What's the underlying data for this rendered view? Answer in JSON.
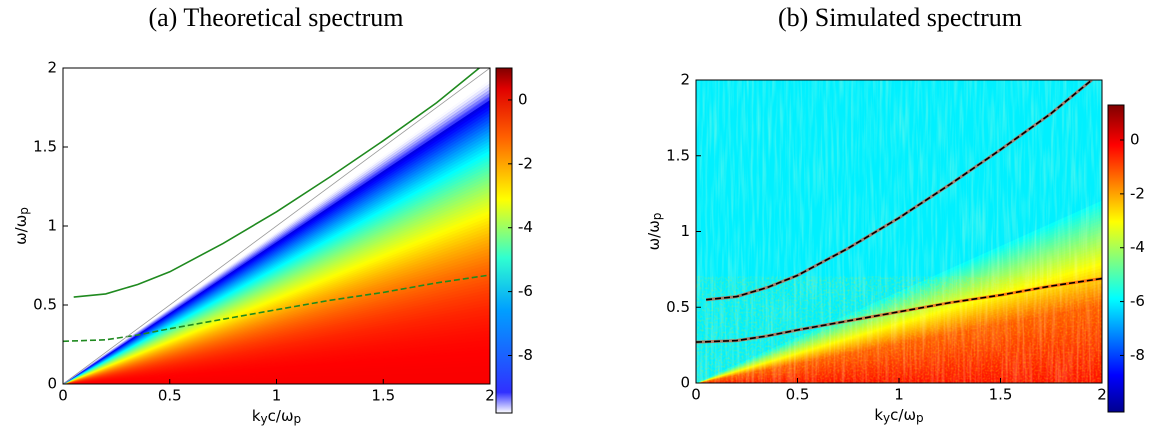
{
  "chart_data": [
    {
      "type": "heatmap",
      "title": "(a) Theoretical spectrum",
      "xlabel": [
        "k",
        "y",
        "c/ω",
        "p"
      ],
      "ylabel": [
        "ω/ω",
        "p"
      ],
      "xlim": [
        0,
        2
      ],
      "ylim": [
        0,
        2
      ],
      "xticks": [
        0,
        0.5,
        1,
        1.5,
        2
      ],
      "yticks": [
        0,
        0.5,
        1,
        1.5,
        2
      ],
      "clim": [
        -9.8,
        1
      ],
      "cticks": [
        -8,
        -6,
        -4,
        -2,
        0
      ],
      "colormap": "jet-white",
      "series": [
        {
          "color": "#1f8a1f",
          "dash": false,
          "x": [
            0.05,
            0.2,
            0.35,
            0.5,
            0.75,
            1,
            1.25,
            1.5,
            1.75,
            1.95
          ],
          "values": [
            0.55,
            0.57,
            0.63,
            0.71,
            0.89,
            1.09,
            1.31,
            1.54,
            1.78,
            2
          ]
        },
        {
          "color": "#1f8a1f",
          "dash": true,
          "x": [
            0,
            0.2,
            0.35,
            0.5,
            0.75,
            1,
            1.25,
            1.5,
            1.75,
            2
          ],
          "values": [
            0.27,
            0.28,
            0.31,
            0.35,
            0.41,
            0.47,
            0.53,
            0.58,
            0.64,
            0.69
          ]
        },
        {
          "color": "#9a9a9a",
          "dash": false,
          "x": [
            0,
            2
          ],
          "values": [
            0,
            2
          ]
        }
      ]
    },
    {
      "type": "heatmap",
      "title": "(b) Simulated spectrum",
      "xlabel": [
        "k",
        "y",
        "c/ω",
        "p"
      ],
      "ylabel": [
        "ω/ω",
        "p"
      ],
      "xlim": [
        0,
        2
      ],
      "ylim": [
        0,
        2
      ],
      "xticks": [
        0,
        0.5,
        1,
        1.5,
        2
      ],
      "yticks": [
        0,
        0.5,
        1,
        1.5,
        2
      ],
      "clim": [
        -10.1,
        1.3
      ],
      "cticks": [
        -8,
        -6,
        -4,
        -2,
        0
      ],
      "colormap": "jet",
      "series": [
        {
          "color": "#000000",
          "dash": true,
          "x": [
            0.05,
            0.2,
            0.35,
            0.5,
            0.75,
            1,
            1.25,
            1.5,
            1.75,
            1.95
          ],
          "values": [
            0.55,
            0.57,
            0.63,
            0.71,
            0.89,
            1.09,
            1.31,
            1.54,
            1.78,
            2
          ]
        },
        {
          "color": "#000000",
          "dash": true,
          "x": [
            0,
            0.2,
            0.35,
            0.5,
            0.75,
            1,
            1.25,
            1.5,
            1.75,
            2
          ],
          "values": [
            0.27,
            0.28,
            0.31,
            0.35,
            0.41,
            0.47,
            0.53,
            0.58,
            0.64,
            0.69
          ]
        }
      ]
    }
  ]
}
